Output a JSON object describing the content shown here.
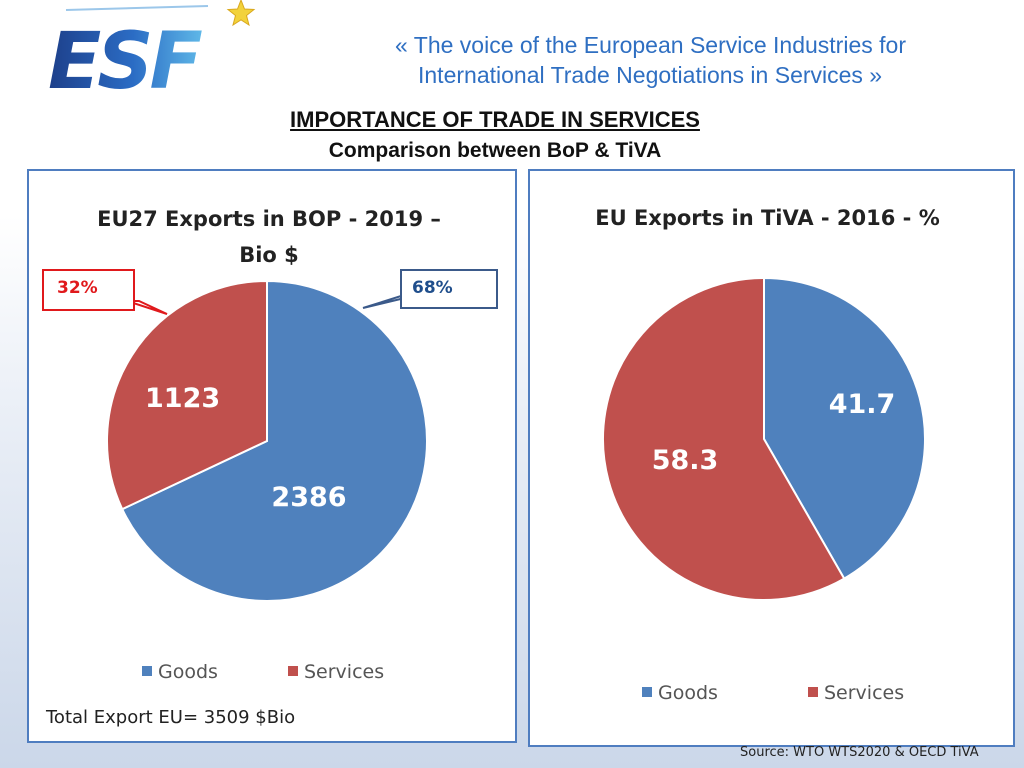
{
  "header": {
    "logo_text": "ESF",
    "tagline_line1": "«  The voice of the European Service Industries for",
    "tagline_line2": "International Trade Negotiations in Services  »",
    "title": "IMPORTANCE OF TRADE IN SERVICES",
    "subtitle": "Comparison between BoP & TiVA"
  },
  "colors": {
    "goods": "#4f81bd",
    "services": "#c0504d",
    "panel_border": "#4f7dc0",
    "tagline": "#2f6fc2"
  },
  "chart_data": [
    {
      "type": "pie",
      "title_line1": "EU27 Exports in BOP - 2019 –",
      "title_line2": "Bio $",
      "categories": [
        "Goods",
        "Services"
      ],
      "values": [
        2386,
        1123
      ],
      "data_labels": [
        "2386",
        "1123"
      ],
      "callouts": {
        "goods": "68%",
        "services": "32%"
      },
      "legend": [
        "Goods",
        "Services"
      ],
      "legend_position": "bottom",
      "total_label": "Total Export EU= 3509 $Bio"
    },
    {
      "type": "pie",
      "title": "EU Exports in TiVA - 2016 - %",
      "categories": [
        "Goods",
        "Services"
      ],
      "values": [
        41.7,
        58.3
      ],
      "data_labels": [
        "41.7",
        "58.3"
      ],
      "legend": [
        "Goods",
        "Services"
      ],
      "legend_position": "bottom"
    }
  ],
  "footer": {
    "source": "Source: WTO WTS2020 & OECD TiVA"
  }
}
